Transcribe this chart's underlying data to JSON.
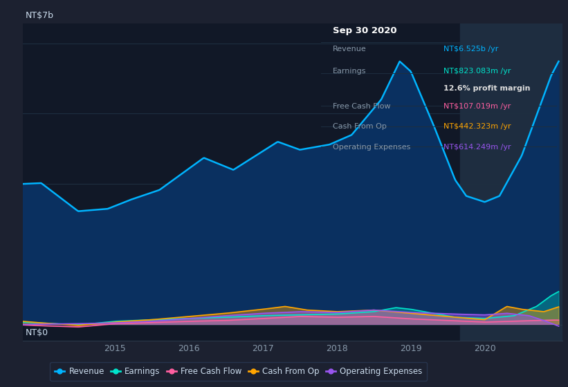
{
  "bg_color": "#1c2130",
  "chart_area_color": "#111827",
  "title_label": "NT$7b",
  "zero_label": "NT$0",
  "x_ticks": [
    2015,
    2016,
    2017,
    2018,
    2019,
    2020
  ],
  "ylim_low": -400000000.0,
  "ylim_high": 7500000000.0,
  "highlight_x_start": 2019.67,
  "highlight_color": "#1e2d40",
  "revenue_color": "#00b4ff",
  "earnings_color": "#00e5cc",
  "fcf_color": "#ff5fa0",
  "cashfromop_color": "#ffa500",
  "opex_color": "#9955ee",
  "revenue_fill_color": "#0a3060",
  "tooltip_bg": "#050a14",
  "tooltip_title": "Sep 30 2020",
  "legend_items": [
    {
      "label": "Revenue",
      "color": "#00b4ff"
    },
    {
      "label": "Earnings",
      "color": "#00e5cc"
    },
    {
      "label": "Free Cash Flow",
      "color": "#ff5fa0"
    },
    {
      "label": "Cash From Op",
      "color": "#ffa500"
    },
    {
      "label": "Operating Expenses",
      "color": "#9955ee"
    }
  ]
}
